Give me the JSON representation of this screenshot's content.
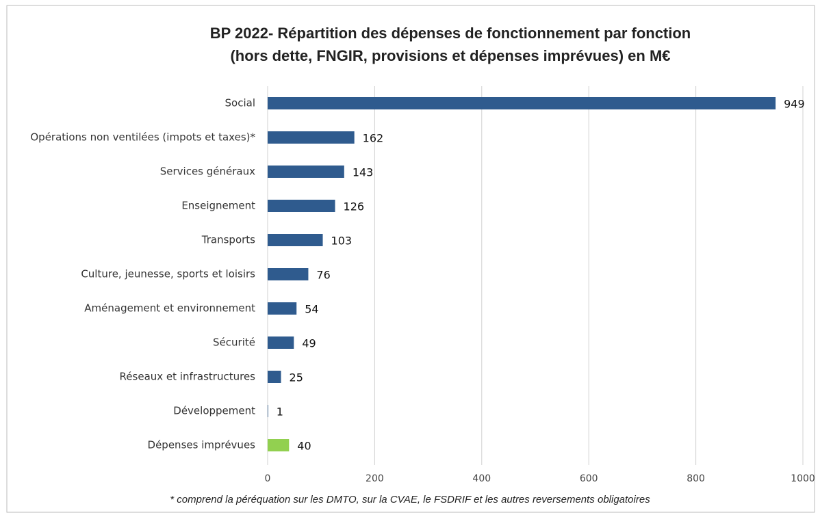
{
  "chart_data": {
    "type": "barh",
    "title": [
      "BP 2022- Répartition des dépenses de fonctionnement  par fonction",
      "(hors dette, FNGIR, provisions et dépenses imprévues) en M€"
    ],
    "categories": [
      "Social",
      "Opérations non ventilées (impots et taxes)*",
      "Services généraux",
      "Enseignement",
      "Transports",
      "Culture, jeunesse, sports et loisirs",
      "Aménagement et environnement",
      "Sécurité",
      "Réseaux et infrastructures",
      "Développement",
      "Dépenses imprévues"
    ],
    "values": [
      949,
      162,
      143,
      126,
      103,
      76,
      54,
      49,
      25,
      1,
      40
    ],
    "colors": [
      "#2f5b8e",
      "#2f5b8e",
      "#2f5b8e",
      "#2f5b8e",
      "#2f5b8e",
      "#2f5b8e",
      "#2f5b8e",
      "#2f5b8e",
      "#2f5b8e",
      "#2f5b8e",
      "#92d050"
    ],
    "xlim": [
      0,
      1000
    ],
    "xticks": [
      0,
      200,
      400,
      600,
      800,
      1000
    ],
    "grid": true,
    "note": "* comprend la péréquation sur les DMTO, sur la CVAE, le FSDRIF et les autres reversements obligatoires"
  }
}
